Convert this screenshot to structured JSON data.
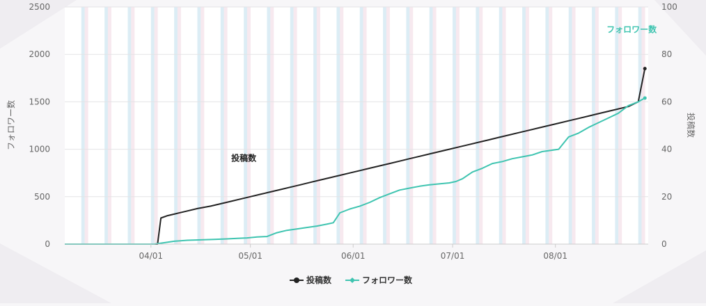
{
  "chart_data": {
    "type": "line",
    "x_axis": {
      "type": "date",
      "ticks": [
        {
          "date": "2023-04-01",
          "label": "04/01"
        },
        {
          "date": "2023-05-01",
          "label": "05/01"
        },
        {
          "date": "2023-06-01",
          "label": "06/01"
        },
        {
          "date": "2023-07-01",
          "label": "07/01"
        },
        {
          "date": "2023-08-01",
          "label": "08/01"
        }
      ],
      "range": [
        "2023-03-06",
        "2023-08-29"
      ]
    },
    "y_left": {
      "label": "フォロワー数",
      "range": [
        0,
        2500
      ],
      "ticks": [
        "0",
        "500",
        "1000",
        "1500",
        "2000",
        "2500"
      ]
    },
    "y_right": {
      "label": "投稿数",
      "range": [
        0,
        100
      ],
      "ticks": [
        "0",
        "20",
        "40",
        "60",
        "80",
        "100"
      ]
    },
    "grid": true,
    "weekend_bands": true,
    "legend_position": "bottom",
    "legend": [
      {
        "name": "投稿数",
        "color": "#222222"
      },
      {
        "name": "フォロワー数",
        "color": "#3ec4b0"
      }
    ],
    "annotations": [
      {
        "text": "投稿数",
        "date": "2023-04-29",
        "value": 31,
        "series": "投稿数"
      },
      {
        "text": "フォロワー数",
        "date": "2023-08-24",
        "value": 2130,
        "series": "フォロワー数"
      }
    ],
    "series": [
      {
        "name": "投稿数",
        "axis": "right",
        "color": "#222222",
        "points": [
          [
            "2023-03-06",
            0
          ],
          [
            "2023-04-03",
            0
          ],
          [
            "2023-04-04",
            11
          ],
          [
            "2023-04-06",
            12
          ],
          [
            "2023-04-09",
            13
          ],
          [
            "2023-04-12",
            14
          ],
          [
            "2023-04-15",
            15
          ],
          [
            "2023-04-19",
            16
          ],
          [
            "2023-04-22",
            17
          ],
          [
            "2023-04-25",
            18
          ],
          [
            "2023-04-28",
            19
          ],
          [
            "2023-05-01",
            20
          ],
          [
            "2023-05-04",
            21
          ],
          [
            "2023-05-07",
            22
          ],
          [
            "2023-05-10",
            23
          ],
          [
            "2023-05-13",
            24
          ],
          [
            "2023-05-16",
            25
          ],
          [
            "2023-05-19",
            26
          ],
          [
            "2023-05-22",
            27
          ],
          [
            "2023-05-25",
            28
          ],
          [
            "2023-05-28",
            29
          ],
          [
            "2023-05-31",
            30
          ],
          [
            "2023-06-03",
            31
          ],
          [
            "2023-06-06",
            32
          ],
          [
            "2023-06-09",
            33
          ],
          [
            "2023-06-12",
            34
          ],
          [
            "2023-06-15",
            35
          ],
          [
            "2023-06-18",
            36
          ],
          [
            "2023-06-21",
            37
          ],
          [
            "2023-06-24",
            38
          ],
          [
            "2023-06-27",
            39
          ],
          [
            "2023-06-30",
            40
          ],
          [
            "2023-07-03",
            41
          ],
          [
            "2023-07-06",
            42
          ],
          [
            "2023-07-09",
            43
          ],
          [
            "2023-07-12",
            44
          ],
          [
            "2023-07-15",
            45
          ],
          [
            "2023-07-18",
            46
          ],
          [
            "2023-07-21",
            47
          ],
          [
            "2023-07-24",
            48
          ],
          [
            "2023-07-27",
            49
          ],
          [
            "2023-07-30",
            50
          ],
          [
            "2023-08-02",
            51
          ],
          [
            "2023-08-05",
            52
          ],
          [
            "2023-08-08",
            53
          ],
          [
            "2023-08-11",
            54
          ],
          [
            "2023-08-14",
            55
          ],
          [
            "2023-08-17",
            56
          ],
          [
            "2023-08-20",
            57
          ],
          [
            "2023-08-23",
            58
          ],
          [
            "2023-08-26",
            60
          ],
          [
            "2023-08-28",
            74
          ]
        ]
      },
      {
        "name": "フォロワー数",
        "axis": "left",
        "color": "#3ec4b0",
        "points": [
          [
            "2023-03-06",
            0
          ],
          [
            "2023-04-02",
            0
          ],
          [
            "2023-04-05",
            15
          ],
          [
            "2023-04-08",
            30
          ],
          [
            "2023-04-12",
            40
          ],
          [
            "2023-04-16",
            45
          ],
          [
            "2023-04-20",
            50
          ],
          [
            "2023-04-24",
            55
          ],
          [
            "2023-04-27",
            60
          ],
          [
            "2023-04-30",
            65
          ],
          [
            "2023-05-03",
            75
          ],
          [
            "2023-05-06",
            80
          ],
          [
            "2023-05-09",
            120
          ],
          [
            "2023-05-12",
            145
          ],
          [
            "2023-05-15",
            160
          ],
          [
            "2023-05-18",
            175
          ],
          [
            "2023-05-21",
            190
          ],
          [
            "2023-05-24",
            210
          ],
          [
            "2023-05-26",
            225
          ],
          [
            "2023-05-28",
            330
          ],
          [
            "2023-05-31",
            370
          ],
          [
            "2023-06-03",
            400
          ],
          [
            "2023-06-06",
            440
          ],
          [
            "2023-06-09",
            490
          ],
          [
            "2023-06-12",
            530
          ],
          [
            "2023-06-15",
            570
          ],
          [
            "2023-06-18",
            590
          ],
          [
            "2023-06-21",
            610
          ],
          [
            "2023-06-24",
            625
          ],
          [
            "2023-06-27",
            635
          ],
          [
            "2023-06-30",
            645
          ],
          [
            "2023-07-02",
            660
          ],
          [
            "2023-07-04",
            690
          ],
          [
            "2023-07-07",
            760
          ],
          [
            "2023-07-10",
            800
          ],
          [
            "2023-07-13",
            850
          ],
          [
            "2023-07-16",
            870
          ],
          [
            "2023-07-19",
            900
          ],
          [
            "2023-07-22",
            920
          ],
          [
            "2023-07-25",
            940
          ],
          [
            "2023-07-28",
            975
          ],
          [
            "2023-07-31",
            990
          ],
          [
            "2023-08-02",
            1000
          ],
          [
            "2023-08-05",
            1130
          ],
          [
            "2023-08-08",
            1170
          ],
          [
            "2023-08-11",
            1230
          ],
          [
            "2023-08-14",
            1280
          ],
          [
            "2023-08-17",
            1330
          ],
          [
            "2023-08-20",
            1380
          ],
          [
            "2023-08-23",
            1460
          ],
          [
            "2023-08-26",
            1500
          ],
          [
            "2023-08-28",
            1540
          ]
        ]
      }
    ]
  }
}
